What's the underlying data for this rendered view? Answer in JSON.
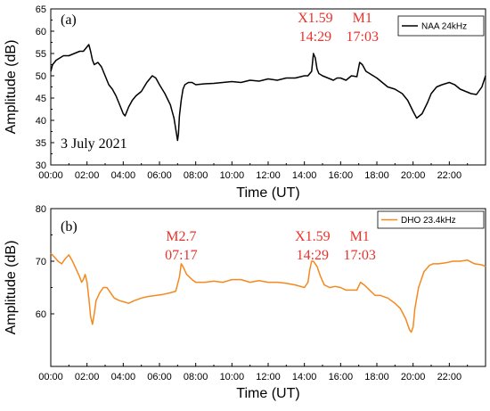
{
  "chart_data": [
    {
      "type": "line",
      "panel_label": "(a)",
      "xlabel": "Time (UT)",
      "ylabel": "Amplitude (dB)",
      "ylim": [
        30,
        65
      ],
      "xlim": [
        0,
        24
      ],
      "yticks": [
        30,
        35,
        40,
        45,
        50,
        55,
        60,
        65
      ],
      "xtick_labels": [
        "00:00",
        "02:00",
        "04:00",
        "06:00",
        "08:00",
        "10:00",
        "12:00",
        "14:00",
        "16:00",
        "18:00",
        "20:00",
        "22:00"
      ],
      "date_text": "3 July 2021",
      "series": [
        {
          "name": "NAA 24kHz",
          "color": "#000000",
          "x": [
            0.0,
            0.1,
            0.3,
            0.5,
            0.7,
            1.0,
            1.3,
            1.6,
            1.8,
            2.0,
            2.1,
            2.2,
            2.3,
            2.4,
            2.6,
            2.8,
            3.0,
            3.2,
            3.4,
            3.6,
            3.8,
            4.0,
            4.1,
            4.2,
            4.3,
            4.5,
            4.7,
            5.0,
            5.3,
            5.6,
            5.8,
            6.0,
            6.3,
            6.6,
            6.8,
            6.9,
            7.0,
            7.05,
            7.1,
            7.2,
            7.3,
            7.4,
            7.6,
            7.8,
            8.0,
            8.5,
            9.0,
            9.5,
            10.0,
            10.5,
            11.0,
            11.5,
            12.0,
            12.5,
            13.0,
            13.5,
            14.0,
            14.2,
            14.4,
            14.5,
            14.6,
            14.7,
            14.8,
            15.0,
            15.3,
            15.6,
            15.8,
            16.0,
            16.3,
            16.6,
            16.9,
            17.05,
            17.2,
            17.4,
            17.6,
            17.8,
            18.0,
            18.3,
            18.6,
            19.0,
            19.4,
            19.7,
            20.0,
            20.2,
            20.5,
            20.8,
            21.0,
            21.3,
            21.6,
            22.0,
            22.3,
            22.6,
            22.9,
            23.2,
            23.5,
            23.8,
            24.0
          ],
          "values": [
            51.0,
            52.5,
            53.5,
            54.0,
            54.5,
            54.5,
            55.0,
            55.5,
            55.5,
            56.5,
            57.0,
            55.5,
            53.5,
            52.5,
            53.0,
            52.0,
            50.0,
            48.0,
            47.0,
            45.5,
            43.5,
            41.5,
            41.0,
            42.0,
            43.0,
            44.5,
            45.5,
            46.5,
            48.5,
            50.0,
            49.5,
            48.0,
            46.0,
            43.5,
            40.5,
            38.0,
            35.5,
            37.0,
            41.0,
            44.5,
            47.0,
            48.0,
            48.5,
            48.5,
            48.0,
            48.2,
            48.3,
            48.5,
            48.7,
            48.5,
            49.0,
            48.8,
            49.3,
            49.0,
            49.5,
            49.5,
            50.0,
            50.0,
            51.0,
            55.0,
            54.0,
            51.5,
            50.5,
            50.0,
            49.5,
            49.0,
            49.5,
            49.5,
            49.0,
            50.0,
            49.8,
            53.0,
            52.5,
            51.0,
            50.5,
            50.0,
            49.5,
            48.5,
            47.5,
            47.0,
            46.0,
            44.5,
            42.0,
            40.5,
            41.5,
            44.0,
            46.0,
            47.5,
            48.0,
            48.5,
            48.0,
            47.0,
            46.5,
            46.0,
            45.8,
            47.5,
            50.0
          ]
        }
      ],
      "annotations": [
        {
          "x": 14.6,
          "lines": [
            "X1.59",
            "14:29"
          ]
        },
        {
          "x": 17.2,
          "lines": [
            "M1",
            "17:03"
          ]
        }
      ]
    },
    {
      "type": "line",
      "panel_label": "(b)",
      "xlabel": "Time (UT)",
      "ylabel": "Amplitude (dB)",
      "ylim": [
        50,
        80
      ],
      "xlim": [
        0,
        24
      ],
      "yticks": [
        60,
        70,
        80
      ],
      "xtick_labels": [
        "00:00",
        "02:00",
        "04:00",
        "06:00",
        "08:00",
        "10:00",
        "12:00",
        "14:00",
        "16:00",
        "18:00",
        "20:00",
        "22:00"
      ],
      "series": [
        {
          "name": "DHO 23.4kHz",
          "color": "#f5891f",
          "x": [
            0.0,
            0.2,
            0.4,
            0.6,
            0.8,
            1.0,
            1.2,
            1.4,
            1.6,
            1.7,
            1.8,
            1.9,
            2.0,
            2.1,
            2.2,
            2.3,
            2.4,
            2.5,
            2.7,
            2.9,
            3.1,
            3.3,
            3.5,
            3.8,
            4.0,
            4.3,
            4.6,
            5.0,
            5.4,
            5.8,
            6.2,
            6.6,
            6.9,
            7.1,
            7.2,
            7.3,
            7.5,
            7.8,
            8.0,
            8.5,
            9.0,
            9.5,
            10.0,
            10.5,
            11.0,
            11.5,
            12.0,
            12.5,
            13.0,
            13.5,
            14.0,
            14.2,
            14.3,
            14.4,
            14.5,
            14.7,
            14.9,
            15.1,
            15.4,
            15.7,
            16.0,
            16.3,
            16.6,
            16.9,
            17.1,
            17.3,
            17.6,
            17.9,
            18.2,
            18.6,
            19.0,
            19.3,
            19.6,
            19.8,
            19.9,
            20.0,
            20.1,
            20.3,
            20.6,
            20.9,
            21.1,
            21.4,
            21.8,
            22.2,
            22.6,
            23.0,
            23.4,
            23.8,
            24.0
          ],
          "values": [
            71.5,
            70.8,
            70.0,
            69.5,
            70.5,
            71.2,
            70.0,
            68.5,
            67.0,
            66.0,
            66.5,
            67.5,
            66.0,
            63.0,
            59.5,
            58.0,
            60.0,
            62.5,
            64.0,
            65.0,
            65.0,
            64.0,
            63.0,
            62.5,
            62.3,
            62.0,
            62.5,
            63.0,
            63.3,
            63.5,
            63.7,
            64.0,
            64.3,
            67.0,
            69.5,
            69.0,
            67.5,
            66.5,
            66.0,
            66.0,
            66.2,
            66.0,
            66.5,
            66.5,
            66.0,
            66.3,
            66.0,
            66.0,
            65.8,
            65.5,
            65.0,
            66.0,
            68.5,
            70.0,
            70.0,
            69.0,
            67.0,
            65.5,
            65.0,
            65.2,
            65.0,
            64.5,
            64.5,
            64.5,
            66.0,
            65.5,
            64.5,
            63.5,
            63.5,
            63.0,
            62.0,
            61.0,
            59.0,
            57.0,
            56.5,
            57.5,
            61.0,
            65.0,
            68.0,
            69.2,
            69.5,
            69.5,
            69.7,
            70.0,
            70.0,
            70.2,
            69.5,
            69.3,
            69.0
          ]
        }
      ],
      "annotations": [
        {
          "x": 7.2,
          "lines": [
            "M2.7",
            "07:17"
          ]
        },
        {
          "x": 14.45,
          "lines": [
            "X1.59",
            "14:29"
          ]
        },
        {
          "x": 17.05,
          "lines": [
            "M1",
            "17:03"
          ]
        }
      ]
    }
  ]
}
